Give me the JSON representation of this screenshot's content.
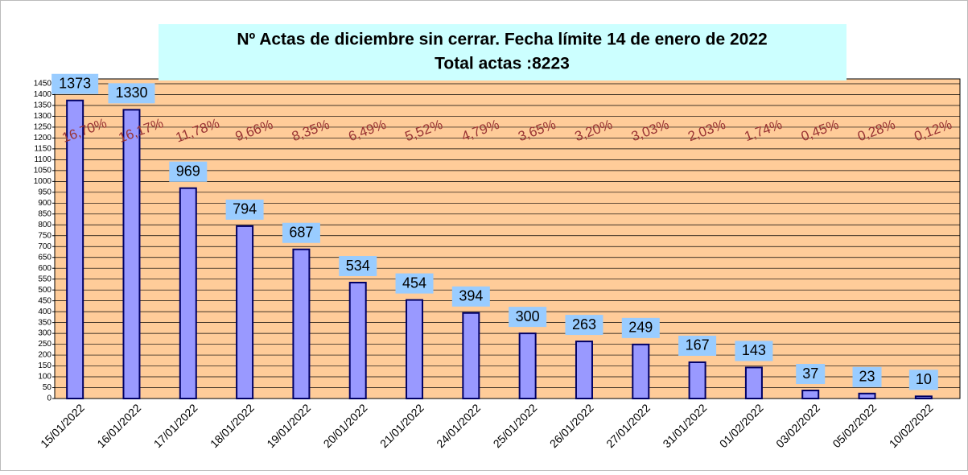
{
  "chart_data": {
    "type": "bar",
    "title": "Nº Actas de diciembre sin cerrar. Fecha límite 14 de enero de 2022",
    "subtitle": "Total actas :8223",
    "categories": [
      "15/01/2022",
      "16/01/2022",
      "17/01/2022",
      "18/01/2022",
      "19/01/2022",
      "20/01/2022",
      "21/01/2022",
      "24/01/2022",
      "25/01/2022",
      "26/01/2022",
      "27/01/2022",
      "31/01/2022",
      "01/02/2022",
      "03/02/2022",
      "05/02/2022",
      "10/02/2022"
    ],
    "values": [
      1373,
      1330,
      969,
      794,
      687,
      534,
      454,
      394,
      300,
      263,
      249,
      167,
      143,
      37,
      23,
      10
    ],
    "share_labels": [
      "16,70%",
      "16,17%",
      "11,78%",
      "9,66%",
      "8,35%",
      "6,49%",
      "5,52%",
      "4,79%",
      "3,65%",
      "3,20%",
      "3,03%",
      "2,03%",
      "1,74%",
      "0,45%",
      "0,28%",
      "0,12%"
    ],
    "color": "#9999ff",
    "ylim": [
      0,
      1450
    ],
    "yticks": [
      0,
      50,
      100,
      150,
      200,
      250,
      300,
      350,
      400,
      450,
      500,
      550,
      600,
      650,
      700,
      750,
      800,
      850,
      900,
      950,
      1000,
      1050,
      1100,
      1150,
      1200,
      1250,
      1300,
      1350,
      1400,
      1450
    ],
    "grid": true
  }
}
